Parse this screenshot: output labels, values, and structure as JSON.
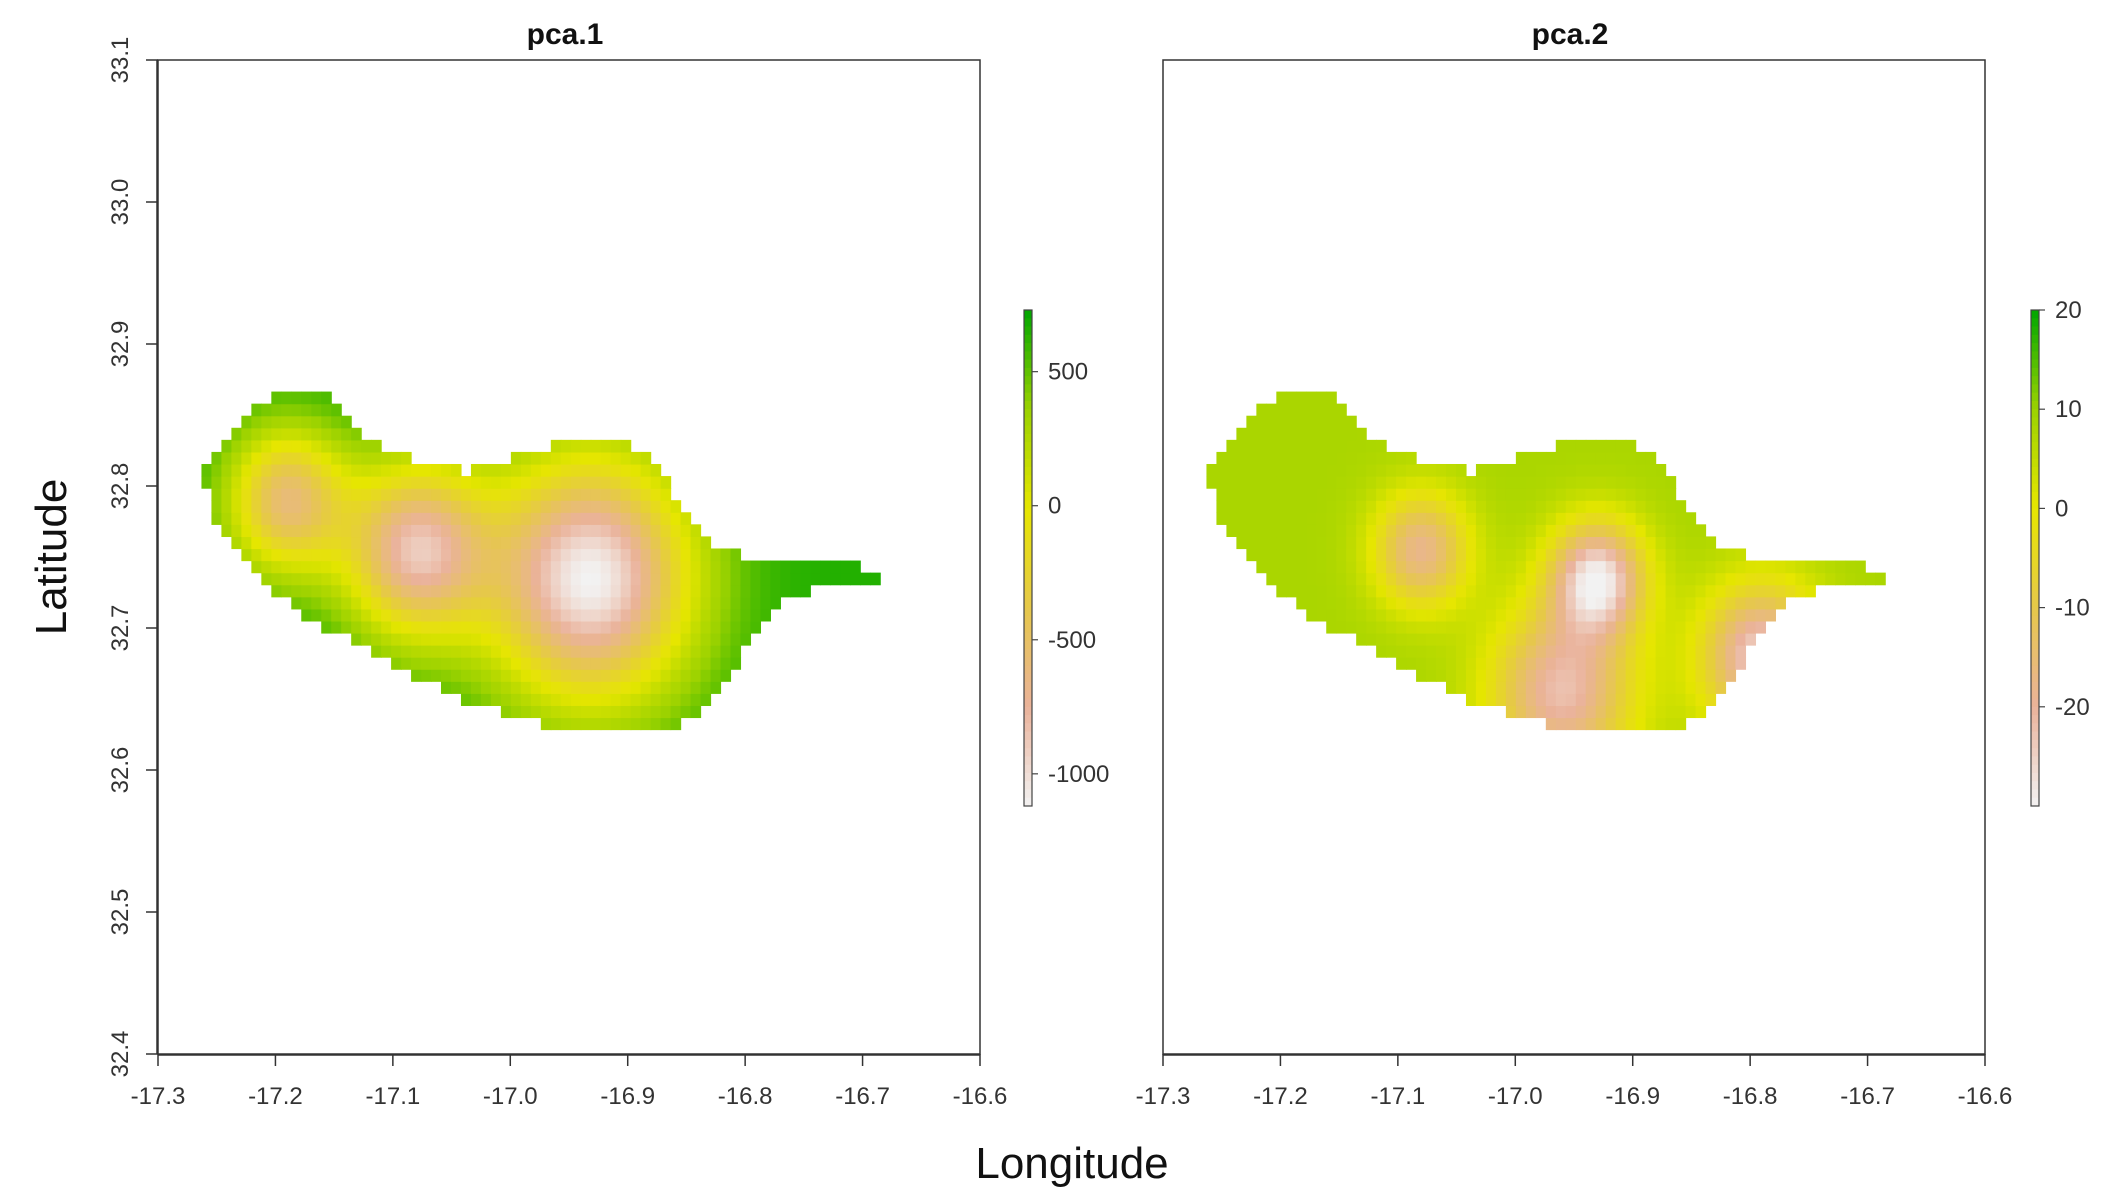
{
  "figure": {
    "x_axis_title": "Longitude",
    "y_axis_title": "Latitude"
  },
  "colors": {
    "ramp": [
      "#f2f2f2",
      "#eab29a",
      "#e6c84a",
      "#e6e600",
      "#9bd200",
      "#00a600"
    ],
    "frame": "#333333"
  },
  "chart_data": [
    {
      "type": "heatmap",
      "title": "pca.1",
      "xlim": [
        -17.3,
        -16.6
      ],
      "ylim": [
        32.4,
        33.1
      ],
      "x_ticks": [
        "-17.3",
        "-17.2",
        "-17.1",
        "-17.0",
        "-16.9",
        "-16.8",
        "-16.7",
        "-16.6"
      ],
      "y_ticks": [
        "32.4",
        "32.5",
        "32.6",
        "32.7",
        "32.8",
        "32.9",
        "33.0",
        "33.1"
      ],
      "legend": {
        "range": [
          -1120,
          730
        ],
        "ticks": [
          {
            "value": 500,
            "label": "500"
          },
          {
            "value": 0,
            "label": "0"
          },
          {
            "value": -500,
            "label": "-500"
          },
          {
            "value": -1000,
            "label": "-1000"
          }
        ]
      },
      "peaks": [
        {
          "lon": -16.932,
          "lat": 32.735,
          "value": -1120,
          "radius": 0.085
        },
        {
          "lon": -17.08,
          "lat": 32.755,
          "value": -820,
          "radius": 0.06
        },
        {
          "lon": -17.19,
          "lat": 32.79,
          "value": -560,
          "radius": 0.05
        }
      ],
      "baseline": 650
    },
    {
      "type": "heatmap",
      "title": "pca.2",
      "xlim": [
        -17.3,
        -16.6
      ],
      "ylim": [
        32.4,
        33.1
      ],
      "x_ticks": [
        "-17.3",
        "-17.2",
        "-17.1",
        "-17.0",
        "-16.9",
        "-16.8",
        "-16.7",
        "-16.6"
      ],
      "y_ticks": [],
      "legend": {
        "range": [
          -30,
          20
        ],
        "ticks": [
          {
            "value": 20,
            "label": "20"
          },
          {
            "value": 10,
            "label": "10"
          },
          {
            "value": 0,
            "label": "0"
          },
          {
            "value": -10,
            "label": "-10"
          },
          {
            "value": -20,
            "label": "-20"
          }
        ]
      },
      "peaks": [
        {
          "lon": -16.93,
          "lat": 32.735,
          "value": -28,
          "radius": 0.04
        },
        {
          "lon": -17.08,
          "lat": 32.755,
          "value": -18,
          "radius": 0.04
        },
        {
          "lon": -16.79,
          "lat": 32.68,
          "value": -26,
          "radius": 0.05
        },
        {
          "lon": -16.96,
          "lat": 32.655,
          "value": -22,
          "radius": 0.06
        }
      ],
      "baseline": 8
    }
  ],
  "island": {
    "cell_lon": 0.0085,
    "cell_lat": 0.0085,
    "outline": [
      [
        -17.265,
        32.81
      ],
      [
        -17.25,
        32.825
      ],
      [
        -17.225,
        32.85
      ],
      [
        -17.2,
        32.865
      ],
      [
        -17.16,
        32.865
      ],
      [
        -17.13,
        32.84
      ],
      [
        -17.09,
        32.82
      ],
      [
        -17.04,
        32.81
      ],
      [
        -17.0,
        32.82
      ],
      [
        -16.96,
        32.83
      ],
      [
        -16.92,
        32.835
      ],
      [
        -16.885,
        32.825
      ],
      [
        -16.865,
        32.8
      ],
      [
        -16.845,
        32.775
      ],
      [
        -16.82,
        32.755
      ],
      [
        -16.79,
        32.75
      ],
      [
        -16.76,
        32.748
      ],
      [
        -16.72,
        32.748
      ],
      [
        -16.68,
        32.735
      ],
      [
        -16.72,
        32.732
      ],
      [
        -16.77,
        32.72
      ],
      [
        -16.79,
        32.7
      ],
      [
        -16.81,
        32.67
      ],
      [
        -16.83,
        32.645
      ],
      [
        -16.86,
        32.63
      ],
      [
        -16.9,
        32.625
      ],
      [
        -16.96,
        32.63
      ],
      [
        -17.0,
        32.64
      ],
      [
        -17.04,
        32.65
      ],
      [
        -17.08,
        32.665
      ],
      [
        -17.13,
        32.69
      ],
      [
        -17.18,
        32.71
      ],
      [
        -17.22,
        32.74
      ],
      [
        -17.25,
        32.775
      ]
    ]
  }
}
